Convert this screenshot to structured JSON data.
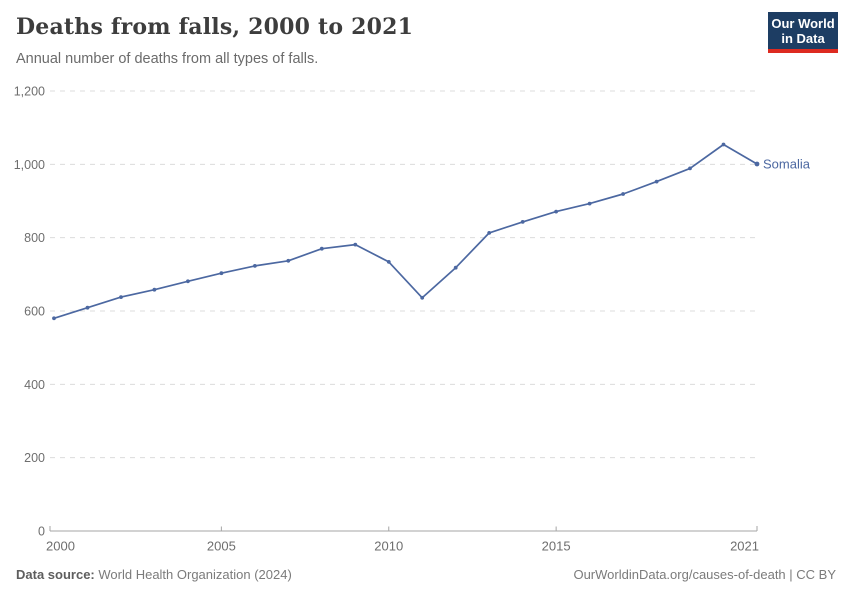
{
  "header": {
    "title": "Deaths from falls, 2000 to 2021",
    "subtitle": "Annual number of deaths from all types of falls.",
    "logo": {
      "line1": "Our World",
      "line2": "in Data"
    }
  },
  "chart_data": {
    "type": "line",
    "title": "Deaths from falls, 2000 to 2021",
    "subtitle": "Annual number of deaths from all types of falls.",
    "xlabel": "",
    "ylabel": "",
    "x": [
      2000,
      2001,
      2002,
      2003,
      2004,
      2005,
      2006,
      2007,
      2008,
      2009,
      2010,
      2011,
      2012,
      2013,
      2014,
      2015,
      2016,
      2017,
      2018,
      2019,
      2020,
      2021
    ],
    "series": [
      {
        "name": "Somalia",
        "color": "#4c68a1",
        "values": [
          580,
          609,
          638,
          658,
          681,
          703,
          723,
          737,
          770,
          781,
          734,
          636,
          718,
          813,
          843,
          871,
          893,
          919,
          953,
          989,
          1054,
          1001
        ]
      }
    ],
    "ylim": [
      0,
      1200
    ],
    "yticks": [
      0,
      200,
      400,
      600,
      800,
      1000,
      1200
    ],
    "xticks": [
      2000,
      2005,
      2010,
      2015,
      2021
    ],
    "grid": "horizontal-dashed",
    "legend_position": "line-end-label",
    "colors": {
      "gridline": "#dcdcdc",
      "axis": "#a5a5a5",
      "tick_label": "#6e6e6e"
    }
  },
  "footer": {
    "data_source_label": "Data source:",
    "data_source_value": "World Health Organization (2024)",
    "attribution": "OurWorldinData.org/causes-of-death | CC BY"
  }
}
